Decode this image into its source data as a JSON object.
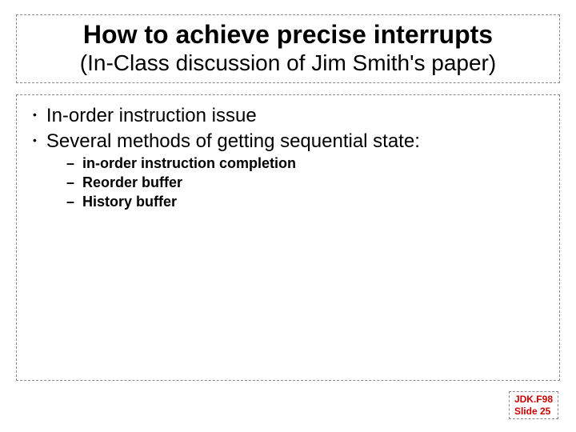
{
  "title": {
    "line1": "How to achieve precise interrupts",
    "line2": "(In-Class discussion of Jim Smith's paper)"
  },
  "bullets": {
    "level1": [
      "In-order instruction issue",
      "Several methods of getting sequential state:"
    ],
    "level2": [
      "in-order instruction completion",
      "Reorder buffer",
      "History buffer"
    ]
  },
  "footer": {
    "line1": "JDK.F98",
    "line2": "Slide 25"
  },
  "colors": {
    "text": "#000000",
    "footer_text": "#cc0000",
    "border": "#888888",
    "background": "#ffffff"
  },
  "fonts": {
    "family": "Comic Sans MS",
    "title_size": 32,
    "subtitle_size": 28,
    "bullet1_size": 24,
    "bullet2_size": 18,
    "footer_size": 12
  }
}
